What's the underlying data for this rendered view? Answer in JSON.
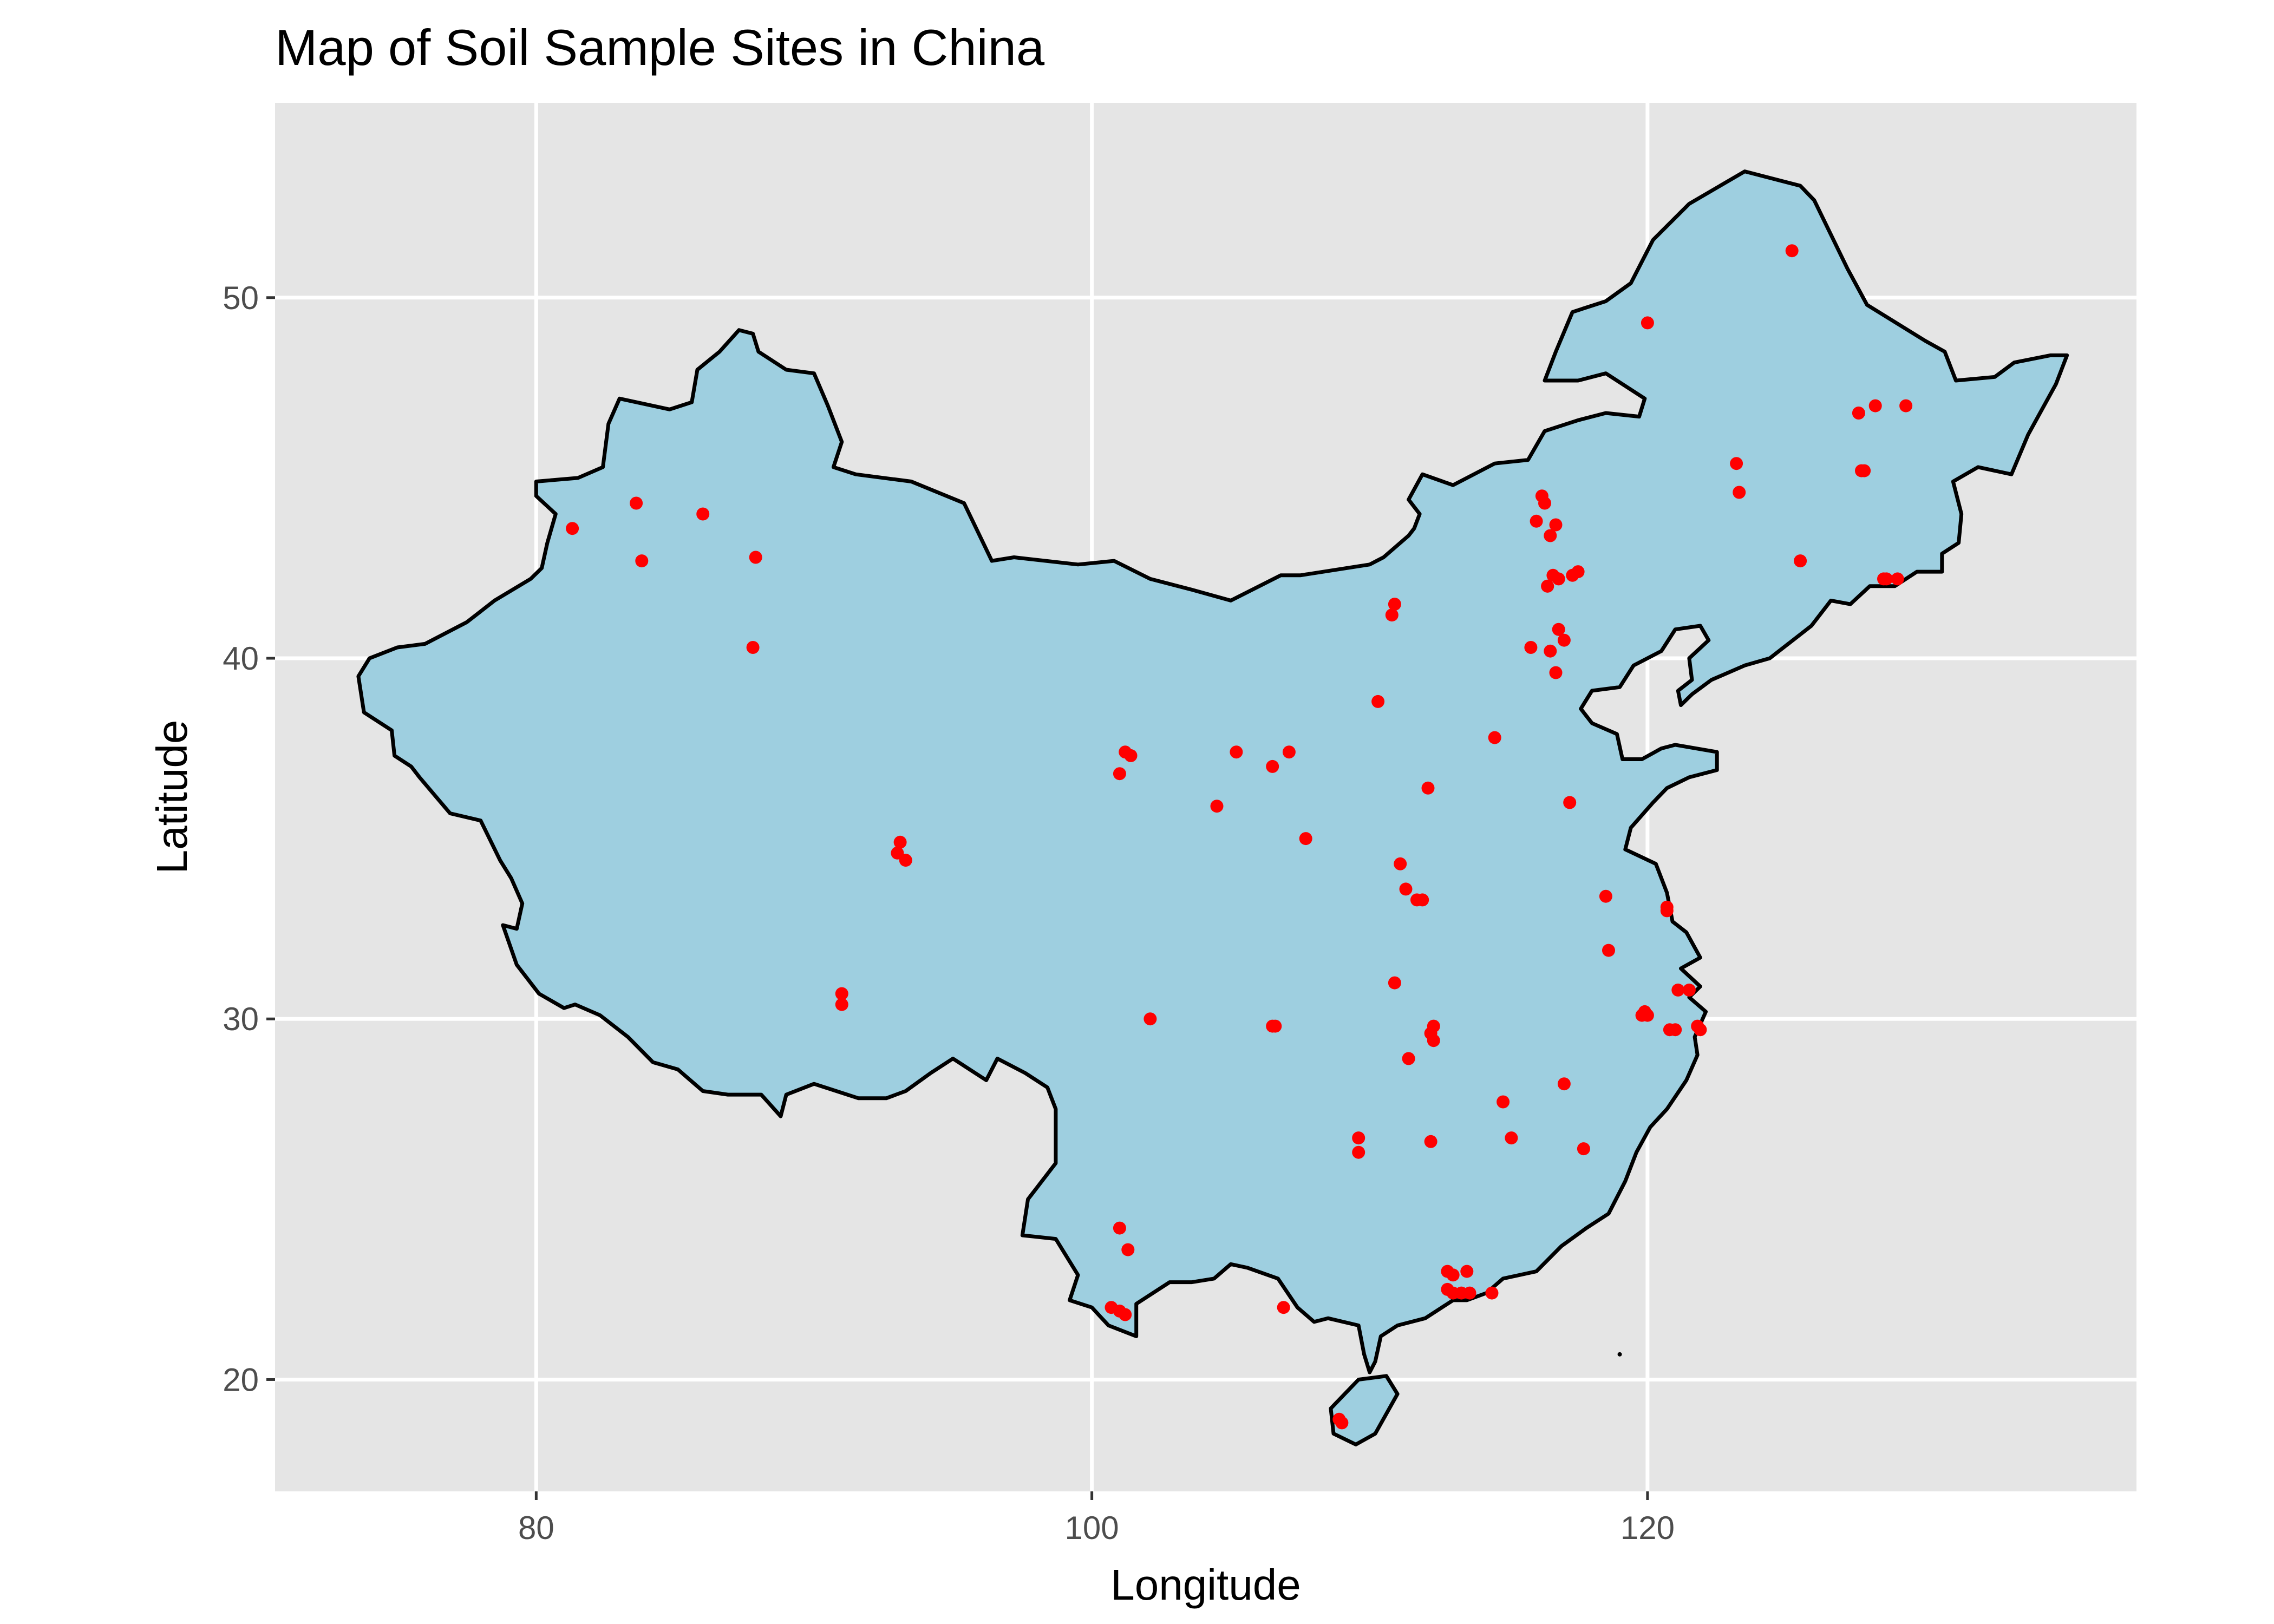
{
  "chart_data": {
    "type": "scatter",
    "title": "Map of Soil Sample Sites in China",
    "xlabel": "Longitude",
    "ylabel": "Latitude",
    "xlim": [
      70.6,
      137.6
    ],
    "ylim": [
      16.9,
      55.4
    ],
    "x_ticks": [
      80,
      100,
      120
    ],
    "y_ticks": [
      20,
      30,
      40,
      50
    ],
    "x_tick_labels": [
      "80",
      "100",
      "120"
    ],
    "y_tick_labels": [
      "20",
      "30",
      "40",
      "50"
    ],
    "grid": true,
    "legend": "none",
    "background_color": "#e5e5e5",
    "land_fill_color": "#9ecfe0",
    "outline_color": "#000000",
    "point_color": "#ff0000",
    "outline": [
      [
        73.6,
        39.5
      ],
      [
        74.0,
        40.0
      ],
      [
        75.0,
        40.3
      ],
      [
        76.0,
        40.4
      ],
      [
        77.5,
        41.0
      ],
      [
        78.5,
        41.6
      ],
      [
        79.8,
        42.2
      ],
      [
        80.2,
        42.5
      ],
      [
        80.4,
        43.2
      ],
      [
        80.7,
        44.0
      ],
      [
        80.0,
        44.5
      ],
      [
        80.0,
        44.9
      ],
      [
        81.5,
        45.0
      ],
      [
        82.4,
        45.3
      ],
      [
        82.6,
        46.5
      ],
      [
        83.0,
        47.2
      ],
      [
        84.8,
        46.9
      ],
      [
        85.6,
        47.1
      ],
      [
        85.8,
        48.0
      ],
      [
        86.6,
        48.5
      ],
      [
        87.3,
        49.1
      ],
      [
        87.8,
        49.0
      ],
      [
        88.0,
        48.5
      ],
      [
        89.0,
        48.0
      ],
      [
        90.0,
        47.9
      ],
      [
        90.5,
        47.0
      ],
      [
        91.0,
        46.0
      ],
      [
        90.7,
        45.3
      ],
      [
        91.5,
        45.1
      ],
      [
        93.5,
        44.9
      ],
      [
        95.4,
        44.3
      ],
      [
        96.4,
        42.7
      ],
      [
        97.2,
        42.8
      ],
      [
        99.5,
        42.6
      ],
      [
        100.8,
        42.7
      ],
      [
        102.1,
        42.2
      ],
      [
        103.6,
        41.9
      ],
      [
        105.0,
        41.6
      ],
      [
        106.8,
        42.3
      ],
      [
        107.5,
        42.3
      ],
      [
        110.0,
        42.6
      ],
      [
        110.5,
        42.8
      ],
      [
        111.4,
        43.4
      ],
      [
        111.6,
        43.6
      ],
      [
        111.8,
        44.0
      ],
      [
        111.4,
        44.4
      ],
      [
        111.9,
        45.1
      ],
      [
        113.0,
        44.8
      ],
      [
        114.5,
        45.4
      ],
      [
        115.7,
        45.5
      ],
      [
        116.3,
        46.3
      ],
      [
        117.5,
        46.6
      ],
      [
        118.5,
        46.8
      ],
      [
        119.7,
        46.7
      ],
      [
        119.9,
        47.2
      ],
      [
        118.5,
        47.9
      ],
      [
        117.5,
        47.7
      ],
      [
        116.3,
        47.7
      ],
      [
        116.7,
        48.5
      ],
      [
        117.3,
        49.6
      ],
      [
        118.5,
        49.9
      ],
      [
        119.4,
        50.4
      ],
      [
        120.2,
        51.6
      ],
      [
        121.5,
        52.6
      ],
      [
        123.5,
        53.5
      ],
      [
        125.5,
        53.1
      ],
      [
        126.0,
        52.7
      ],
      [
        127.2,
        50.8
      ],
      [
        127.9,
        49.8
      ],
      [
        130.0,
        48.8
      ],
      [
        130.7,
        48.5
      ],
      [
        131.1,
        47.7
      ],
      [
        132.5,
        47.8
      ],
      [
        133.2,
        48.2
      ],
      [
        134.5,
        48.4
      ],
      [
        135.1,
        48.4
      ],
      [
        134.7,
        47.6
      ],
      [
        134.2,
        46.9
      ],
      [
        133.7,
        46.2
      ],
      [
        133.1,
        45.1
      ],
      [
        131.9,
        45.3
      ],
      [
        131.0,
        44.9
      ],
      [
        131.3,
        44.0
      ],
      [
        131.2,
        43.2
      ],
      [
        130.6,
        42.9
      ],
      [
        130.6,
        42.4
      ],
      [
        129.7,
        42.4
      ],
      [
        128.9,
        42.0
      ],
      [
        128.0,
        42.0
      ],
      [
        127.3,
        41.5
      ],
      [
        126.6,
        41.6
      ],
      [
        125.9,
        40.9
      ],
      [
        124.4,
        40.0
      ],
      [
        123.5,
        39.8
      ],
      [
        122.3,
        39.4
      ],
      [
        121.6,
        39.0
      ],
      [
        121.2,
        38.7
      ],
      [
        121.1,
        39.1
      ],
      [
        121.6,
        39.4
      ],
      [
        121.5,
        40.0
      ],
      [
        122.2,
        40.5
      ],
      [
        121.9,
        40.9
      ],
      [
        121.0,
        40.8
      ],
      [
        120.5,
        40.2
      ],
      [
        119.5,
        39.8
      ],
      [
        119.0,
        39.2
      ],
      [
        118.0,
        39.1
      ],
      [
        117.6,
        38.6
      ],
      [
        118.0,
        38.2
      ],
      [
        118.9,
        37.9
      ],
      [
        119.1,
        37.2
      ],
      [
        119.8,
        37.2
      ],
      [
        120.5,
        37.5
      ],
      [
        121.0,
        37.6
      ],
      [
        122.5,
        37.4
      ],
      [
        122.5,
        36.9
      ],
      [
        121.5,
        36.7
      ],
      [
        120.7,
        36.4
      ],
      [
        120.2,
        36.0
      ],
      [
        119.4,
        35.3
      ],
      [
        119.2,
        34.7
      ],
      [
        120.3,
        34.3
      ],
      [
        120.7,
        33.5
      ],
      [
        120.9,
        32.7
      ],
      [
        121.4,
        32.4
      ],
      [
        121.9,
        31.7
      ],
      [
        121.2,
        31.4
      ],
      [
        121.9,
        30.9
      ],
      [
        121.5,
        30.6
      ],
      [
        122.1,
        30.2
      ],
      [
        121.7,
        29.5
      ],
      [
        121.8,
        29.0
      ],
      [
        121.4,
        28.3
      ],
      [
        120.7,
        27.5
      ],
      [
        120.1,
        27.0
      ],
      [
        119.6,
        26.3
      ],
      [
        119.2,
        25.5
      ],
      [
        118.6,
        24.6
      ],
      [
        117.8,
        24.2
      ],
      [
        116.9,
        23.7
      ],
      [
        116.0,
        23.0
      ],
      [
        114.8,
        22.8
      ],
      [
        114.2,
        22.4
      ],
      [
        113.5,
        22.2
      ],
      [
        113.0,
        22.2
      ],
      [
        112.0,
        21.7
      ],
      [
        111.0,
        21.5
      ],
      [
        110.4,
        21.2
      ],
      [
        110.2,
        20.5
      ],
      [
        110.0,
        20.2
      ],
      [
        109.8,
        20.7
      ],
      [
        109.6,
        21.5
      ],
      [
        108.5,
        21.7
      ],
      [
        108.0,
        21.6
      ],
      [
        107.4,
        22.0
      ],
      [
        106.7,
        22.8
      ],
      [
        105.6,
        23.1
      ],
      [
        105.0,
        23.2
      ],
      [
        104.4,
        22.8
      ],
      [
        103.6,
        22.7
      ],
      [
        102.8,
        22.7
      ],
      [
        102.2,
        22.4
      ],
      [
        101.6,
        22.1
      ],
      [
        101.6,
        21.2
      ],
      [
        100.6,
        21.5
      ],
      [
        100.0,
        22.0
      ],
      [
        99.2,
        22.2
      ],
      [
        99.5,
        22.9
      ],
      [
        98.7,
        23.9
      ],
      [
        97.5,
        24.0
      ],
      [
        97.7,
        25.0
      ],
      [
        98.7,
        26.0
      ],
      [
        98.7,
        27.5
      ],
      [
        98.4,
        28.1
      ],
      [
        97.6,
        28.5
      ],
      [
        96.6,
        28.9
      ],
      [
        96.2,
        28.3
      ],
      [
        95.0,
        28.9
      ],
      [
        94.2,
        28.5
      ],
      [
        93.3,
        28.0
      ],
      [
        92.6,
        27.8
      ],
      [
        91.6,
        27.8
      ],
      [
        90.0,
        28.2
      ],
      [
        89.0,
        27.9
      ],
      [
        88.8,
        27.3
      ],
      [
        88.1,
        27.9
      ],
      [
        86.9,
        27.9
      ],
      [
        86.0,
        28.0
      ],
      [
        85.1,
        28.6
      ],
      [
        84.2,
        28.8
      ],
      [
        83.3,
        29.5
      ],
      [
        82.3,
        30.1
      ],
      [
        81.4,
        30.4
      ],
      [
        81.0,
        30.3
      ],
      [
        80.1,
        30.7
      ],
      [
        79.3,
        31.5
      ],
      [
        78.8,
        32.6
      ],
      [
        79.3,
        32.5
      ],
      [
        79.5,
        33.2
      ],
      [
        79.1,
        33.9
      ],
      [
        78.7,
        34.4
      ],
      [
        78.0,
        35.5
      ],
      [
        76.9,
        35.7
      ],
      [
        75.8,
        36.7
      ],
      [
        75.5,
        37.0
      ],
      [
        74.9,
        37.3
      ],
      [
        74.8,
        38.0
      ],
      [
        73.8,
        38.5
      ],
      [
        73.6,
        39.5
      ]
    ],
    "hainan_outline": [
      [
        108.6,
        19.2
      ],
      [
        108.7,
        18.5
      ],
      [
        109.5,
        18.2
      ],
      [
        110.2,
        18.5
      ],
      [
        111.0,
        19.6
      ],
      [
        110.6,
        20.1
      ],
      [
        109.6,
        20.0
      ],
      [
        108.6,
        19.2
      ]
    ],
    "x": [
      81.3,
      83.6,
      83.8,
      86.0,
      87.9,
      87.8,
      91.0,
      91.0,
      93.0,
      93.1,
      93.3,
      101.0,
      101.2,
      101.4,
      105.2,
      106.5,
      107.1,
      107.7,
      102.1,
      104.5,
      106.5,
      106.6,
      110.3,
      110.9,
      110.8,
      111.1,
      111.3,
      111.7,
      111.9,
      112.1,
      112.2,
      112.3,
      114.5,
      115.8,
      116.0,
      116.2,
      116.3,
      116.4,
      116.4,
      116.7,
      116.5,
      116.7,
      116.8,
      117.0,
      117.3,
      117.5,
      116.5,
      116.6,
      116.8,
      117.2,
      118.5,
      118.6,
      119.8,
      120.0,
      120.7,
      120.7,
      121.1,
      121.0,
      120.8,
      119.9,
      121.5,
      121.8,
      121.9,
      120.0,
      123.3,
      123.2,
      125.2,
      125.5,
      127.6,
      127.8,
      127.7,
      128.6,
      129.0,
      129.3,
      128.2,
      128.5,
      110.9,
      111.4,
      112.2,
      112.3,
      112.8,
      113.5,
      114.8,
      115.1,
      117.0,
      117.7,
      113.0,
      112.8,
      113.0,
      113.3,
      113.6,
      114.4,
      109.6,
      109.6,
      101.0,
      101.2,
      101.3,
      100.7,
      101.0,
      106.9,
      108.9,
      109.0
    ],
    "y": [
      43.6,
      44.3,
      42.7,
      44.0,
      42.8,
      40.3,
      30.4,
      30.7,
      34.6,
      34.9,
      34.4,
      36.8,
      37.4,
      37.3,
      37.4,
      37.0,
      37.4,
      35.0,
      30.0,
      35.9,
      29.8,
      29.8,
      38.8,
      41.5,
      41.2,
      34.3,
      33.6,
      33.3,
      33.3,
      36.4,
      29.6,
      29.8,
      37.8,
      40.3,
      43.8,
      44.5,
      44.3,
      42.0,
      42.0,
      43.7,
      40.2,
      39.6,
      40.8,
      40.5,
      42.3,
      42.4,
      43.4,
      42.3,
      42.2,
      36.0,
      33.4,
      31.9,
      30.1,
      30.1,
      33.0,
      33.1,
      30.8,
      29.7,
      29.7,
      30.2,
      30.8,
      29.8,
      29.7,
      49.3,
      44.6,
      45.4,
      51.3,
      42.7,
      46.8,
      45.2,
      45.2,
      42.2,
      42.2,
      47.0,
      47.0,
      42.2,
      31.0,
      28.9,
      26.6,
      29.4,
      23.0,
      23.0,
      27.7,
      26.7,
      28.2,
      26.4,
      22.4,
      22.5,
      22.9,
      22.4,
      22.4,
      22.4,
      26.7,
      26.3,
      24.2,
      21.8,
      23.6,
      22.0,
      21.9,
      22.0,
      18.9,
      18.8
    ]
  }
}
